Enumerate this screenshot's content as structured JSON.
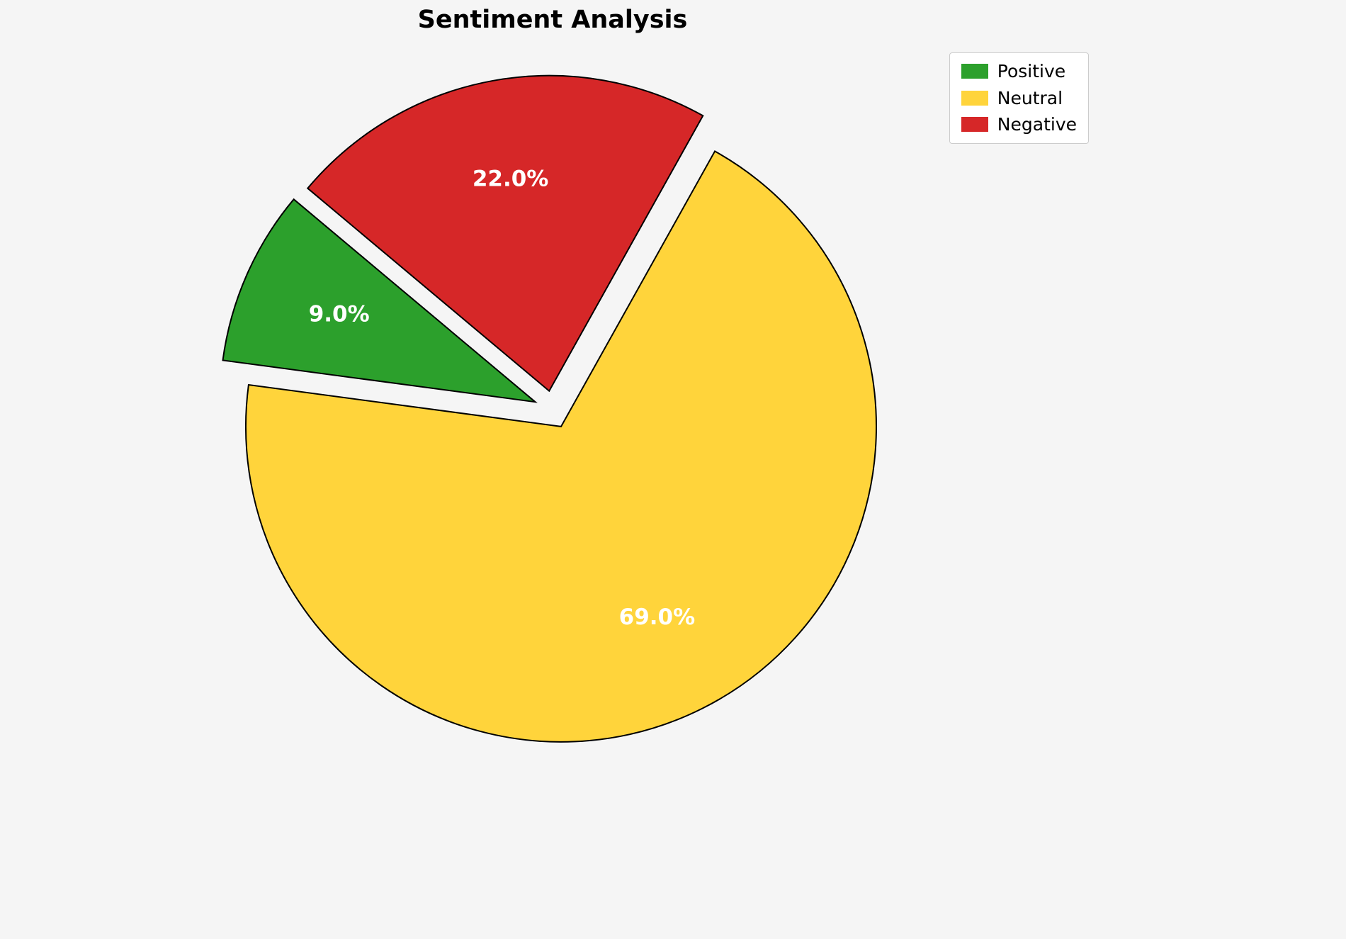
{
  "chart_data": {
    "type": "pie",
    "title": "Sentiment Analysis",
    "labels": [
      "Positive",
      "Neutral",
      "Negative"
    ],
    "values": [
      9.0,
      69.0,
      22.0
    ],
    "percent_labels": [
      "9.0%",
      "69.0%",
      "22.0%"
    ],
    "colors": [
      "#2ca02c",
      "#ffd43b",
      "#d62728"
    ],
    "edge_color": "#000000",
    "background_color": "#f5f5f5",
    "start_angle": 140,
    "direction": "counterclockwise",
    "explode": [
      0.06,
      0.06,
      0.06
    ],
    "pct_distance": 0.68,
    "legend": {
      "position": "upper right",
      "entries": [
        "Positive",
        "Neutral",
        "Negative"
      ]
    }
  }
}
